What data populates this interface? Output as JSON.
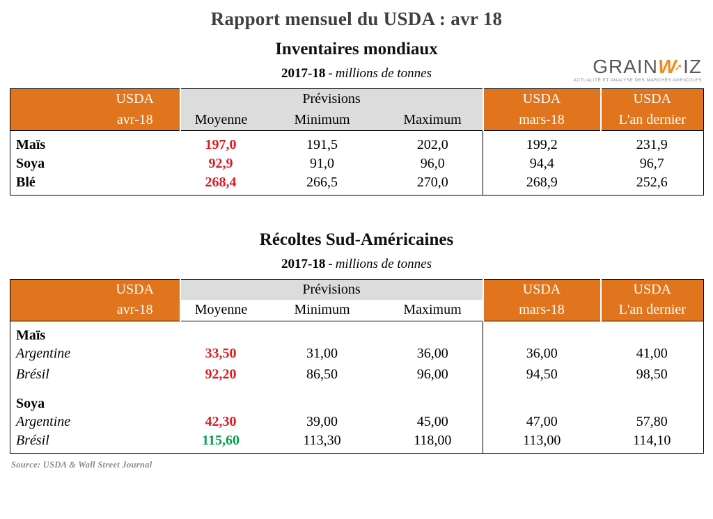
{
  "page": {
    "title": "Rapport mensuel du USDA : avr 18",
    "source": "Source: USDA & Wall Street Journal"
  },
  "logo": {
    "part1": "GRAIN",
    "w": "W",
    "part2": "IZ",
    "arrow": "➚",
    "tagline": "ACTUALITÉ ET ANALYSE DES MARCHÉS AGRICOLES"
  },
  "colors": {
    "header_orange": "#E0751E",
    "header_gray": "#DCDCDC",
    "value_red": "#E01A22",
    "value_green": "#00A04A"
  },
  "tables": [
    {
      "title": "Inventaires mondiaux",
      "year": "2017-18",
      "dash": "-",
      "units": "millions de tonnes",
      "header": {
        "usda_top": "USDA",
        "avr": "avr-18",
        "previsions": "Prévisions",
        "moyenne": "Moyenne",
        "minimum": "Minimum",
        "maximum": "Maximum",
        "mars": "mars-18",
        "dernier": "L'an dernier"
      },
      "rows": [
        {
          "label": "Maïs",
          "moyenne": "197,0",
          "minimum": "191,5",
          "maximum": "202,0",
          "mars": "199,2",
          "dernier": "231,9"
        },
        {
          "label": "Soya",
          "moyenne": "92,9",
          "minimum": "91,0",
          "maximum": "96,0",
          "mars": "94,4",
          "dernier": "96,7"
        },
        {
          "label": "Blé",
          "moyenne": "268,4",
          "minimum": "266,5",
          "maximum": "270,0",
          "mars": "268,9",
          "dernier": "252,6"
        }
      ]
    },
    {
      "title": "Récoltes Sud-Américaines",
      "year": "2017-18",
      "dash": "-",
      "units": "millions de tonnes",
      "header": {
        "usda_top": "USDA",
        "avr": "avr-18",
        "previsions": "Prévisions",
        "moyenne": "Moyenne",
        "minimum": "Minimum",
        "maximum": "Maximum",
        "mars": "mars-18",
        "dernier": "L'an dernier"
      },
      "groups": [
        {
          "label": "Maïs",
          "rows": [
            {
              "label": "Argentine",
              "moyenne": "33,50",
              "minimum": "31,00",
              "maximum": "36,00",
              "mars": "36,00",
              "dernier": "41,00"
            },
            {
              "label": "Brésil",
              "moyenne": "92,20",
              "minimum": "86,50",
              "maximum": "96,00",
              "mars": "94,50",
              "dernier": "98,50"
            }
          ]
        },
        {
          "label": "Soya",
          "rows": [
            {
              "label": "Argentine",
              "moyenne": "42,30",
              "minimum": "39,00",
              "maximum": "45,00",
              "mars": "47,00",
              "dernier": "57,80"
            },
            {
              "label": "Brésil",
              "moyenne": "115,60",
              "minimum": "113,30",
              "maximum": "118,00",
              "mars": "113,00",
              "dernier": "114,10"
            }
          ]
        }
      ]
    }
  ]
}
